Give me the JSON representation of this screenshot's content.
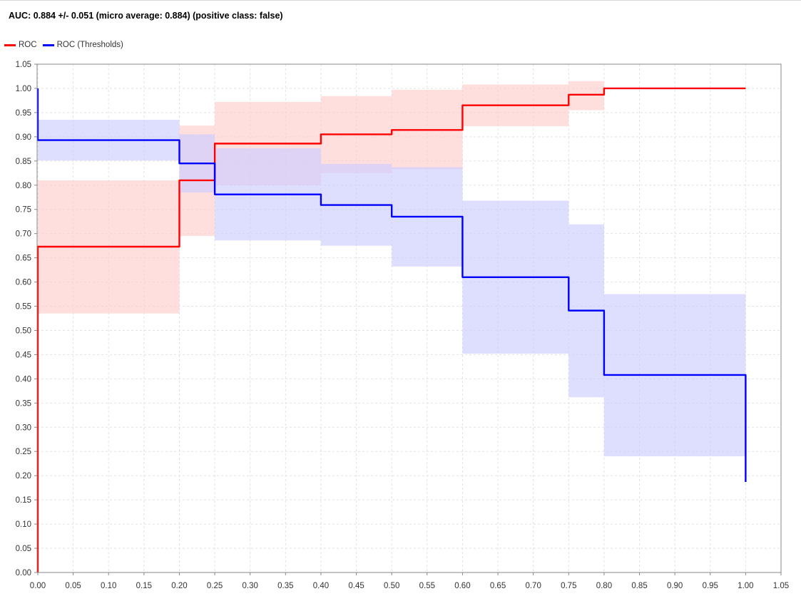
{
  "chart_data": {
    "type": "line",
    "title": "AUC: 0.884 +/- 0.051 (micro average: 0.884) (positive class: false)",
    "xlabel": "",
    "ylabel": "",
    "xlim": [
      0,
      1.05
    ],
    "ylim": [
      0,
      1.05
    ],
    "grid": true,
    "legend_position": "top-left",
    "x_ticks": [
      "0.00",
      "0.05",
      "0.10",
      "0.15",
      "0.20",
      "0.25",
      "0.30",
      "0.35",
      "0.40",
      "0.45",
      "0.50",
      "0.55",
      "0.60",
      "0.65",
      "0.70",
      "0.75",
      "0.80",
      "0.85",
      "0.90",
      "0.95",
      "1.00",
      "1.05"
    ],
    "y_ticks": [
      "0.00",
      "0.05",
      "0.10",
      "0.15",
      "0.20",
      "0.25",
      "0.30",
      "0.35",
      "0.40",
      "0.45",
      "0.50",
      "0.55",
      "0.60",
      "0.65",
      "0.70",
      "0.75",
      "0.80",
      "0.85",
      "0.90",
      "0.95",
      "1.00",
      "1.05"
    ],
    "series": [
      {
        "name": "ROC",
        "color": "#ff0000",
        "band_color": "#ffcccc",
        "steps": [
          {
            "x0": 0.0,
            "x1": 0.2,
            "y": 0.673,
            "lo": 0.535,
            "hi": 0.81
          },
          {
            "x0": 0.2,
            "x1": 0.25,
            "y": 0.81,
            "lo": 0.695,
            "hi": 0.923
          },
          {
            "x0": 0.25,
            "x1": 0.4,
            "y": 0.886,
            "lo": 0.8,
            "hi": 0.972
          },
          {
            "x0": 0.4,
            "x1": 0.5,
            "y": 0.905,
            "lo": 0.825,
            "hi": 0.984
          },
          {
            "x0": 0.5,
            "x1": 0.6,
            "y": 0.914,
            "lo": 0.833,
            "hi": 0.997
          },
          {
            "x0": 0.6,
            "x1": 0.75,
            "y": 0.965,
            "lo": 0.922,
            "hi": 1.008
          },
          {
            "x0": 0.75,
            "x1": 0.8,
            "y": 0.987,
            "lo": 0.955,
            "hi": 1.015
          },
          {
            "x0": 0.8,
            "x1": 1.0,
            "y": 1.0,
            "lo": 1.0,
            "hi": 1.0
          }
        ],
        "start_y": 0.0
      },
      {
        "name": "ROC (Thresholds)",
        "color": "#0000ff",
        "band_color": "#ccccff",
        "steps": [
          {
            "x0": 0.0,
            "x1": 0.2,
            "y": 0.893,
            "lo": 0.851,
            "hi": 0.935
          },
          {
            "x0": 0.2,
            "x1": 0.25,
            "y": 0.845,
            "lo": 0.785,
            "hi": 0.905
          },
          {
            "x0": 0.25,
            "x1": 0.4,
            "y": 0.781,
            "lo": 0.686,
            "hi": 0.876
          },
          {
            "x0": 0.4,
            "x1": 0.5,
            "y": 0.759,
            "lo": 0.675,
            "hi": 0.844
          },
          {
            "x0": 0.5,
            "x1": 0.6,
            "y": 0.735,
            "lo": 0.632,
            "hi": 0.837
          },
          {
            "x0": 0.6,
            "x1": 0.75,
            "y": 0.61,
            "lo": 0.452,
            "hi": 0.768
          },
          {
            "x0": 0.75,
            "x1": 0.8,
            "y": 0.541,
            "lo": 0.362,
            "hi": 0.719
          },
          {
            "x0": 0.8,
            "x1": 1.0,
            "y": 0.408,
            "lo": 0.24,
            "hi": 0.575
          }
        ],
        "start_y": 1.0,
        "end_y": 0.187
      }
    ]
  }
}
